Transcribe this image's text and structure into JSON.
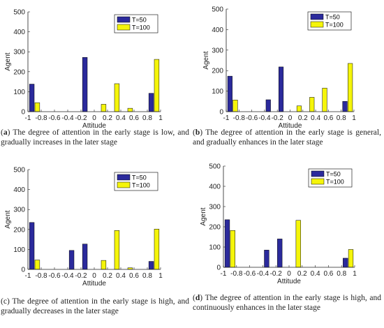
{
  "colors": {
    "T50": "#2b2a9c",
    "T100": "#f5f50a",
    "axis": "#222222"
  },
  "chart_data": [
    {
      "type": "bar",
      "xlabel": "Attitude",
      "ylabel": "Agent",
      "xlim": [
        -1,
        1
      ],
      "ylim": [
        0,
        500
      ],
      "x_ticks": [
        "-1",
        "-0.8",
        "-0.6",
        "-0.4",
        "-0.2",
        "0",
        "0.2",
        "0.4",
        "0.6",
        "0.8",
        "1"
      ],
      "y_ticks": [
        "0",
        "100",
        "200",
        "300",
        "400",
        "500"
      ],
      "legend_position": "top-right",
      "series": [
        {
          "name": "T=50",
          "x": [
            -0.9,
            -0.7,
            -0.5,
            -0.3,
            -0.1,
            0.1,
            0.3,
            0.5,
            0.7,
            0.9
          ],
          "values": [
            138,
            0,
            0,
            0,
            272,
            0,
            0,
            0,
            0,
            92
          ]
        },
        {
          "name": "T=100",
          "x": [
            -0.9,
            -0.7,
            -0.5,
            -0.3,
            -0.1,
            0.1,
            0.3,
            0.5,
            0.7,
            0.9
          ],
          "values": [
            45,
            0,
            0,
            0,
            0,
            37,
            140,
            17,
            0,
            262
          ]
        }
      ]
    },
    {
      "type": "bar",
      "xlabel": "Attitude",
      "ylabel": "Agent",
      "xlim": [
        -1,
        1
      ],
      "ylim": [
        0,
        500
      ],
      "x_ticks": [
        "-1",
        "-0.8",
        "-0.6",
        "-0.4",
        "-0.2",
        "0",
        "0.2",
        "0.4",
        "0.6",
        "0.8",
        "1"
      ],
      "y_ticks": [
        "0",
        "100",
        "200",
        "300",
        "400",
        "500"
      ],
      "legend_position": "top-right",
      "series": [
        {
          "name": "T=50",
          "x": [
            -0.9,
            -0.7,
            -0.5,
            -0.3,
            -0.1,
            0.1,
            0.3,
            0.5,
            0.7,
            0.9
          ],
          "values": [
            173,
            0,
            0,
            58,
            218,
            0,
            0,
            0,
            0,
            50
          ]
        },
        {
          "name": "T=100",
          "x": [
            -0.9,
            -0.7,
            -0.5,
            -0.3,
            -0.1,
            0.1,
            0.3,
            0.5,
            0.7,
            0.9
          ],
          "values": [
            57,
            0,
            0,
            0,
            0,
            28,
            70,
            115,
            0,
            235
          ]
        }
      ]
    },
    {
      "type": "bar",
      "xlabel": "Attitude",
      "ylabel": "Agent",
      "xlim": [
        -1,
        1
      ],
      "ylim": [
        0,
        500
      ],
      "x_ticks": [
        "-1",
        "-0.8",
        "-0.6",
        "-0.4",
        "-0.2",
        "0",
        "0.2",
        "0.4",
        "0.6",
        "0.8",
        "1"
      ],
      "y_ticks": [
        "0",
        "100",
        "200",
        "300",
        "400",
        "500"
      ],
      "legend_position": "top-right",
      "series": [
        {
          "name": "T=50",
          "x": [
            -0.9,
            -0.7,
            -0.5,
            -0.3,
            -0.1,
            0.1,
            0.3,
            0.5,
            0.7,
            0.9
          ],
          "values": [
            235,
            0,
            0,
            95,
            127,
            0,
            0,
            0,
            0,
            40
          ]
        },
        {
          "name": "T=100",
          "x": [
            -0.9,
            -0.7,
            -0.5,
            -0.3,
            -0.1,
            0.1,
            0.3,
            0.5,
            0.7,
            0.9
          ],
          "values": [
            47,
            0,
            0,
            0,
            0,
            45,
            195,
            8,
            0,
            202
          ]
        }
      ]
    },
    {
      "type": "bar",
      "xlabel": "Attitude",
      "ylabel": "Agent",
      "xlim": [
        -1,
        1
      ],
      "ylim": [
        0,
        500
      ],
      "x_ticks": [
        "-1",
        "-0.8",
        "-0.6",
        "-0.4",
        "-0.2",
        "0",
        "0.2",
        "0.4",
        "0.6",
        "0.8",
        "1"
      ],
      "y_ticks": [
        "0",
        "100",
        "200",
        "300",
        "400",
        "500"
      ],
      "legend_position": "top-right",
      "series": [
        {
          "name": "T=50",
          "x": [
            -0.9,
            -0.7,
            -0.5,
            -0.3,
            -0.1,
            0.1,
            0.3,
            0.5,
            0.7,
            0.9
          ],
          "values": [
            235,
            0,
            0,
            85,
            140,
            0,
            0,
            0,
            0,
            45
          ]
        },
        {
          "name": "T=100",
          "x": [
            -0.9,
            -0.7,
            -0.5,
            -0.3,
            -0.1,
            0.1,
            0.3,
            0.5,
            0.7,
            0.9
          ],
          "values": [
            182,
            0,
            0,
            0,
            0,
            232,
            0,
            0,
            0,
            88
          ]
        }
      ]
    }
  ],
  "captions": [
    {
      "label": "a",
      "text": "The degree of attention in the early stage is low, and gradually increases in the later stage"
    },
    {
      "label": "b",
      "text": "The degree of attention in the early stage is general, and gradually enhances in the later stage"
    },
    {
      "label": "c",
      "text": "The degree of attention in the early stage is high, and gradually decreases in the later stage"
    },
    {
      "label": "d",
      "text": "The degree of attention in the early stage is high, and continuously enhances in the later stage"
    }
  ]
}
